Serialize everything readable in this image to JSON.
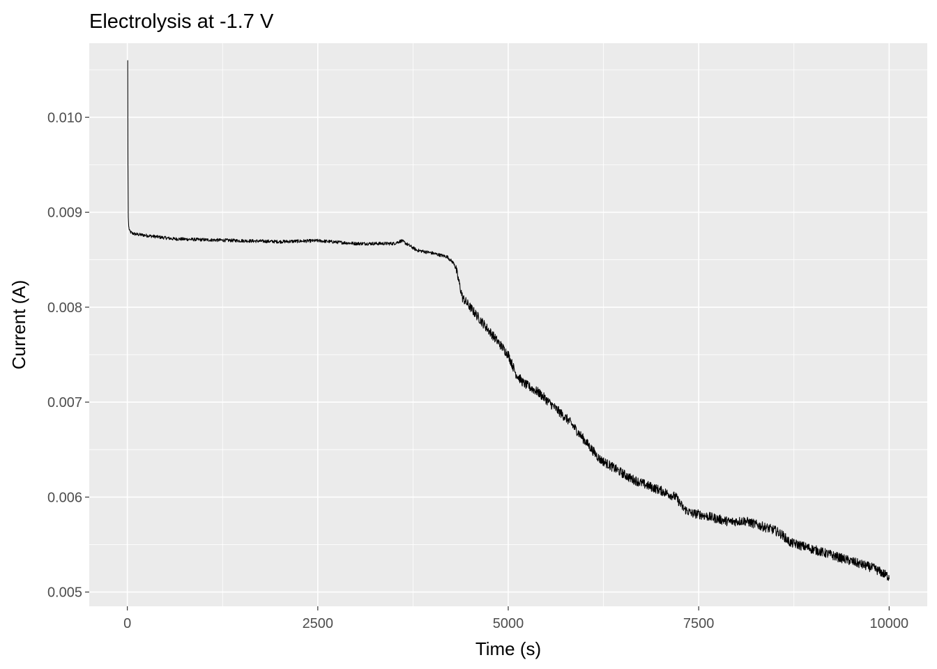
{
  "chart_data": {
    "type": "line",
    "title": "Electrolysis at  -1.7  V",
    "xlabel": "Time (s)",
    "ylabel": "Current (A)",
    "xlim": [
      -500,
      10500
    ],
    "ylim": [
      0.00485,
      0.01078
    ],
    "x_ticks": [
      0,
      2500,
      5000,
      7500,
      10000
    ],
    "x_tick_labels": [
      "0",
      "2500",
      "5000",
      "7500",
      "10000"
    ],
    "y_ticks": [
      0.005,
      0.006,
      0.007,
      0.008,
      0.009,
      0.01
    ],
    "y_tick_labels": [
      "0.005",
      "0.006",
      "0.007",
      "0.008",
      "0.009",
      "0.010"
    ],
    "grid": true,
    "panel_background": "#ebebeb",
    "grid_color": "#ffffff",
    "line_color": "#000000",
    "noise_amplitude": 5e-05,
    "series": [
      {
        "x": [
          5,
          8,
          12,
          18,
          30,
          60,
          100,
          300,
          600,
          1000,
          1500,
          2000,
          2500,
          3000,
          3500,
          3600,
          3700,
          3800,
          4000,
          4200,
          4300,
          4400,
          4600,
          4800,
          5000,
          5100,
          5200,
          5400,
          5600,
          5800,
          6000,
          6200,
          6400,
          6600,
          6800,
          7000,
          7200,
          7300,
          7400,
          7500,
          7700,
          7900,
          8100,
          8300,
          8500,
          8600,
          8700,
          8800,
          9000,
          9200,
          9400,
          9600,
          9800,
          10000
        ],
        "y": [
          0.0106,
          0.0095,
          0.00895,
          0.00885,
          0.0088,
          0.00878,
          0.00877,
          0.00875,
          0.00872,
          0.00871,
          0.0087,
          0.00869,
          0.0087,
          0.00867,
          0.00867,
          0.0087,
          0.00865,
          0.0086,
          0.00857,
          0.00853,
          0.00845,
          0.0081,
          0.0079,
          0.0077,
          0.0075,
          0.0073,
          0.0072,
          0.0071,
          0.00695,
          0.0068,
          0.0066,
          0.0064,
          0.0063,
          0.0062,
          0.00613,
          0.00607,
          0.006,
          0.00588,
          0.00583,
          0.00582,
          0.00578,
          0.00574,
          0.00575,
          0.0057,
          0.00565,
          0.0056,
          0.00552,
          0.0055,
          0.00545,
          0.0054,
          0.00535,
          0.0053,
          0.00525,
          0.00516
        ]
      }
    ]
  }
}
